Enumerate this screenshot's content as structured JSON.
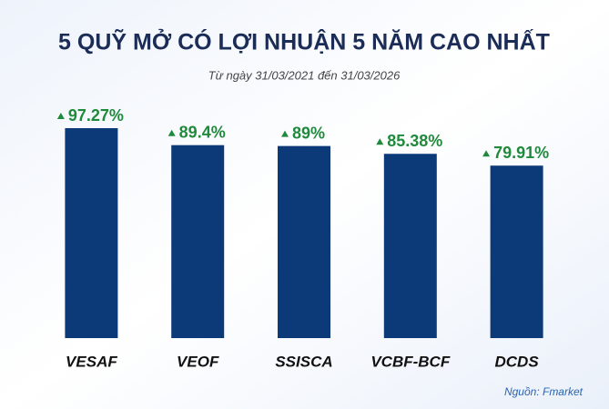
{
  "chart_data": {
    "type": "bar",
    "title": "5 QUỸ MỞ CÓ LỢI NHUẬN 5 NĂM CAO NHẤT",
    "subtitle": "Từ ngày 31/03/2021 đến 31/03/2026",
    "source": "Nguồn: Fmarket",
    "categories": [
      "VESAF",
      "VEOF",
      "SSISCA",
      "VCBF-BCF",
      "DCDS"
    ],
    "values": [
      97.27,
      89.4,
      89,
      85.38,
      79.91
    ],
    "value_labels": [
      "97.27%",
      "89.4%",
      "89%",
      "85.38%",
      "79.91%"
    ],
    "color": "#0c3a78",
    "label_color": "#1f8a3c"
  }
}
